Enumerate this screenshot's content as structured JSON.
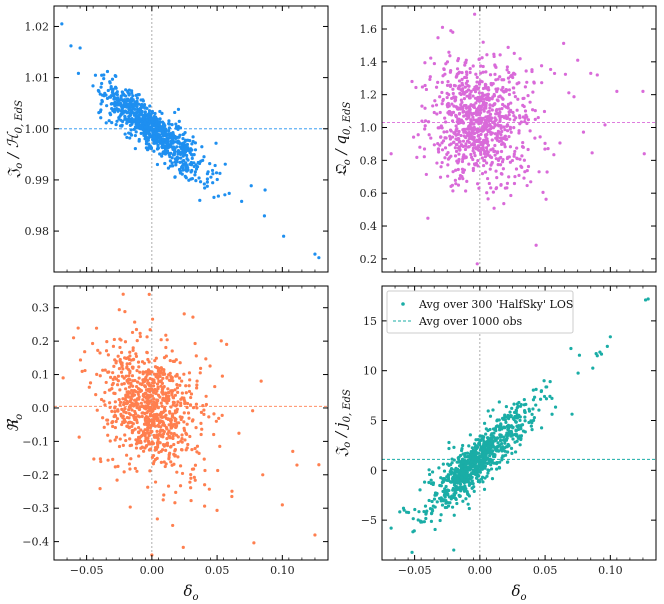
{
  "chart_data": [
    {
      "id": "top-left",
      "type": "scatter",
      "ylabel": "𝔍o / H0,EdS",
      "xlabel": "",
      "xlim": [
        -0.075,
        0.135
      ],
      "ylim": [
        0.972,
        1.024
      ],
      "xticks": [
        -0.05,
        0.0,
        0.05,
        0.1
      ],
      "xtick_labels": [
        "",
        "",
        "",
        ""
      ],
      "yticks": [
        0.98,
        0.99,
        1.0,
        1.01,
        1.02
      ],
      "ytick_labels": [
        "0.98",
        "0.99",
        "1.00",
        "1.01",
        "1.02"
      ],
      "hline": 1.0,
      "vline": 0.0,
      "color": "#1e8ff0",
      "generator": {
        "n": 900,
        "x_sd": 0.018,
        "x_mean": -0.003,
        "slope": -0.195,
        "intercept": 1.0,
        "noise": 0.0018,
        "seed": 11
      },
      "extra_points": [
        {
          "x": -0.069,
          "y": 1.0205
        },
        {
          "x": -0.062,
          "y": 1.0162
        },
        {
          "x": -0.055,
          "y": 1.0158
        },
        {
          "x": 0.101,
          "y": 0.979
        },
        {
          "x": 0.128,
          "y": 0.9748
        },
        {
          "x": 0.125,
          "y": 0.9755
        }
      ]
    },
    {
      "id": "top-right",
      "type": "scatter",
      "ylabel": "𝔔o / q0,EdS",
      "xlabel": "",
      "xlim": [
        -0.075,
        0.135
      ],
      "ylim": [
        0.12,
        1.74
      ],
      "xticks": [
        -0.05,
        0.0,
        0.05,
        0.1
      ],
      "xtick_labels": [
        "",
        "",
        "",
        ""
      ],
      "yticks": [
        0.2,
        0.4,
        0.6,
        0.8,
        1.0,
        1.2,
        1.4,
        1.6
      ],
      "ytick_labels": [
        "0.2",
        "0.4",
        "0.6",
        "0.8",
        "1.0",
        "1.2",
        "1.4",
        "1.6"
      ],
      "hline": 1.03,
      "vline": 0.0,
      "color": "#d96ad9",
      "generator": {
        "n": 900,
        "x_sd": 0.018,
        "x_mean": -0.003,
        "slope": 0.0,
        "intercept": 1.03,
        "noise": 0.16,
        "seed": 23
      },
      "extra_points": [
        {
          "x": -0.068,
          "y": 0.84
        },
        {
          "x": -0.052,
          "y": 1.28
        },
        {
          "x": 0.075,
          "y": 1.41
        },
        {
          "x": 0.085,
          "y": 1.33
        },
        {
          "x": 0.09,
          "y": 1.32
        },
        {
          "x": 0.105,
          "y": 1.22
        },
        {
          "x": 0.125,
          "y": 1.22
        },
        {
          "x": 0.126,
          "y": 0.84
        },
        {
          "x": -0.002,
          "y": 0.17
        },
        {
          "x": -0.004,
          "y": 1.69
        }
      ]
    },
    {
      "id": "bottom-left",
      "type": "scatter",
      "ylabel": "ℜo",
      "xlabel": "δo",
      "xlim": [
        -0.075,
        0.135
      ],
      "ylim": [
        -0.455,
        0.365
      ],
      "xticks": [
        -0.05,
        0.0,
        0.05,
        0.1
      ],
      "xtick_labels": [
        "−0.05",
        "0.00",
        "0.05",
        "0.10"
      ],
      "yticks": [
        -0.4,
        -0.3,
        -0.2,
        -0.1,
        0.0,
        0.1,
        0.2,
        0.3
      ],
      "ytick_labels": [
        "−0.4",
        "−0.3",
        "−0.2",
        "−0.1",
        "0.0",
        "0.1",
        "0.2",
        "0.3"
      ],
      "hline": 0.005,
      "vline": 0.0,
      "color": "#ff7f4f",
      "generator": {
        "n": 900,
        "x_sd": 0.018,
        "x_mean": -0.003,
        "slope": -1.6,
        "intercept": 0.005,
        "noise": 0.085,
        "seed": 37
      },
      "extra_points": [
        {
          "x": -0.068,
          "y": 0.09
        },
        {
          "x": -0.06,
          "y": 0.21
        },
        {
          "x": 0.0,
          "y": -0.44
        },
        {
          "x": -0.002,
          "y": 0.34
        },
        {
          "x": 0.085,
          "y": -0.2
        },
        {
          "x": 0.1,
          "y": -0.29
        },
        {
          "x": 0.128,
          "y": -0.17
        },
        {
          "x": 0.125,
          "y": -0.38
        },
        {
          "x": 0.108,
          "y": -0.13
        }
      ]
    },
    {
      "id": "bottom-right",
      "type": "scatter",
      "ylabel": "𝔍o / j0,EdS",
      "xlabel": "δo",
      "xlim": [
        -0.075,
        0.135
      ],
      "ylim": [
        -9.0,
        18.5
      ],
      "xticks": [
        -0.05,
        0.0,
        0.05,
        0.1
      ],
      "xtick_labels": [
        "−0.05",
        "0.00",
        "0.05",
        "0.10"
      ],
      "yticks": [
        -5,
        0,
        5,
        10,
        15
      ],
      "ytick_labels": [
        "−5",
        "0",
        "5",
        "10",
        "15"
      ],
      "hline": 1.1,
      "vline": 0.0,
      "color": "#1aada6",
      "generator": {
        "n": 900,
        "x_sd": 0.018,
        "x_mean": -0.003,
        "slope": 120.0,
        "intercept": 1.2,
        "noise": 1.1,
        "seed": 53
      },
      "extra_points": [
        {
          "x": -0.068,
          "y": -5.8
        },
        {
          "x": -0.058,
          "y": -4.0
        },
        {
          "x": -0.02,
          "y": -8.0
        },
        {
          "x": 0.1,
          "y": 13.4
        },
        {
          "x": 0.09,
          "y": 11.5
        },
        {
          "x": 0.127,
          "y": 17.1
        },
        {
          "x": 0.129,
          "y": 17.2
        }
      ],
      "legend": {
        "position": "upper-left",
        "entries": [
          {
            "label": "Avg over 300 'HalfSky' LOS",
            "kind": "marker"
          },
          {
            "label": "Avg over 1000 obs",
            "kind": "dashed-line"
          }
        ]
      }
    }
  ]
}
